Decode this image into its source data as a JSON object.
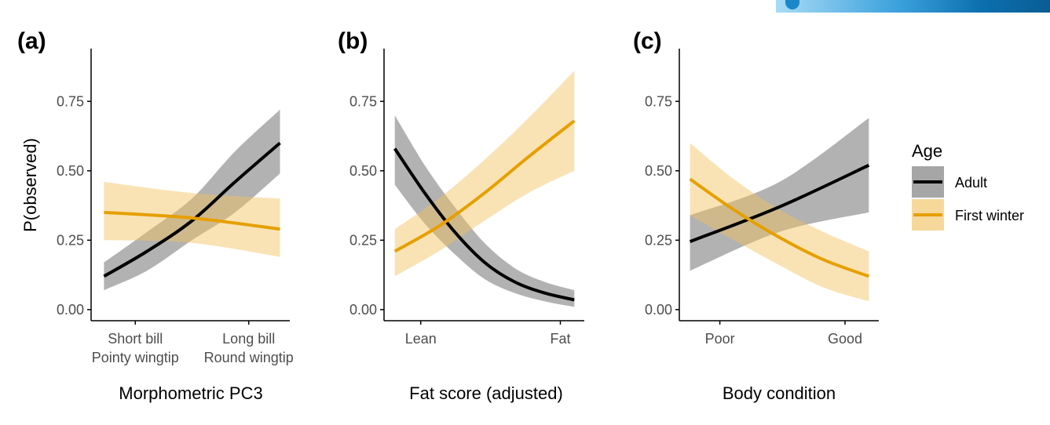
{
  "chart_data": [
    {
      "panel_label": "(a)",
      "type": "line",
      "ylabel": "P(observed)",
      "xlabel": "Morphometric PC3",
      "ylim": [
        -0.04,
        0.94
      ],
      "xlim": [
        0,
        1
      ],
      "y_ticks": [
        "0.00",
        "0.25",
        "0.50",
        "0.75"
      ],
      "x_ticks": [
        {
          "x": 0.21,
          "lines": [
            "Short bill",
            "Pointy wingtip"
          ]
        },
        {
          "x": 0.79,
          "lines": [
            "Long bill",
            "Round wingtip"
          ]
        }
      ],
      "series": [
        {
          "name": "Adult",
          "x": [
            0.05,
            0.27,
            0.5,
            0.72,
            0.95
          ],
          "y": [
            0.12,
            0.21,
            0.32,
            0.46,
            0.6
          ],
          "lower": [
            0.07,
            0.14,
            0.25,
            0.35,
            0.49
          ],
          "upper": [
            0.17,
            0.28,
            0.4,
            0.57,
            0.72
          ]
        },
        {
          "name": "First winter",
          "x": [
            0.05,
            0.5,
            0.95
          ],
          "y": [
            0.35,
            0.33,
            0.29
          ],
          "lower": [
            0.25,
            0.24,
            0.19
          ],
          "upper": [
            0.46,
            0.42,
            0.4
          ]
        }
      ]
    },
    {
      "panel_label": "(b)",
      "type": "line",
      "xlabel": "Fat score (adjusted)",
      "ylim": [
        -0.04,
        0.94
      ],
      "xlim": [
        0,
        1
      ],
      "y_ticks": [
        "0.00",
        "0.25",
        "0.50",
        "0.75"
      ],
      "x_ticks": [
        {
          "x": 0.18,
          "lines": [
            "Lean"
          ]
        },
        {
          "x": 0.88,
          "lines": [
            "Fat"
          ]
        }
      ],
      "series": [
        {
          "name": "Adult",
          "x": [
            0.05,
            0.2,
            0.35,
            0.5,
            0.65,
            0.8,
            0.95
          ],
          "y": [
            0.58,
            0.42,
            0.28,
            0.17,
            0.1,
            0.06,
            0.035
          ],
          "lower": [
            0.45,
            0.31,
            0.2,
            0.11,
            0.06,
            0.03,
            0.01
          ],
          "upper": [
            0.7,
            0.52,
            0.37,
            0.24,
            0.15,
            0.1,
            0.07
          ]
        },
        {
          "name": "First winter",
          "x": [
            0.05,
            0.27,
            0.5,
            0.72,
            0.95
          ],
          "y": [
            0.21,
            0.3,
            0.42,
            0.55,
            0.68
          ],
          "lower": [
            0.12,
            0.21,
            0.32,
            0.42,
            0.5
          ],
          "upper": [
            0.29,
            0.4,
            0.54,
            0.69,
            0.86
          ]
        }
      ]
    },
    {
      "panel_label": "(c)",
      "type": "line",
      "xlabel": "Body condition",
      "ylim": [
        -0.04,
        0.94
      ],
      "xlim": [
        0,
        1
      ],
      "y_ticks": [
        "0.00",
        "0.25",
        "0.50",
        "0.75"
      ],
      "x_ticks": [
        {
          "x": 0.2,
          "lines": [
            "Poor"
          ]
        },
        {
          "x": 0.83,
          "lines": [
            "Good"
          ]
        }
      ],
      "series": [
        {
          "name": "Adult",
          "x": [
            0.05,
            0.5,
            0.95
          ],
          "y": [
            0.245,
            0.37,
            0.52
          ],
          "lower": [
            0.14,
            0.28,
            0.35
          ],
          "upper": [
            0.34,
            0.46,
            0.69
          ]
        },
        {
          "name": "First winter",
          "x": [
            0.05,
            0.27,
            0.5,
            0.72,
            0.95
          ],
          "y": [
            0.47,
            0.36,
            0.26,
            0.18,
            0.12
          ],
          "lower": [
            0.34,
            0.25,
            0.16,
            0.08,
            0.03
          ],
          "upper": [
            0.6,
            0.47,
            0.36,
            0.28,
            0.21
          ]
        }
      ]
    }
  ],
  "legend": {
    "title": "Age",
    "entries": [
      {
        "label": "Adult",
        "line_color": "#000000",
        "fill_color": "#a6a6a6"
      },
      {
        "label": "First winter",
        "line_color": "#e69f00",
        "fill_color": "#f6d89a"
      }
    ]
  },
  "colors": {
    "adult_line": "#000000",
    "adult_band": "#7f7f7f",
    "first_winter_line": "#e69f00",
    "first_winter_band": "#f2c05c",
    "axis": "#000000",
    "tick_text": "#4d4d4d"
  }
}
